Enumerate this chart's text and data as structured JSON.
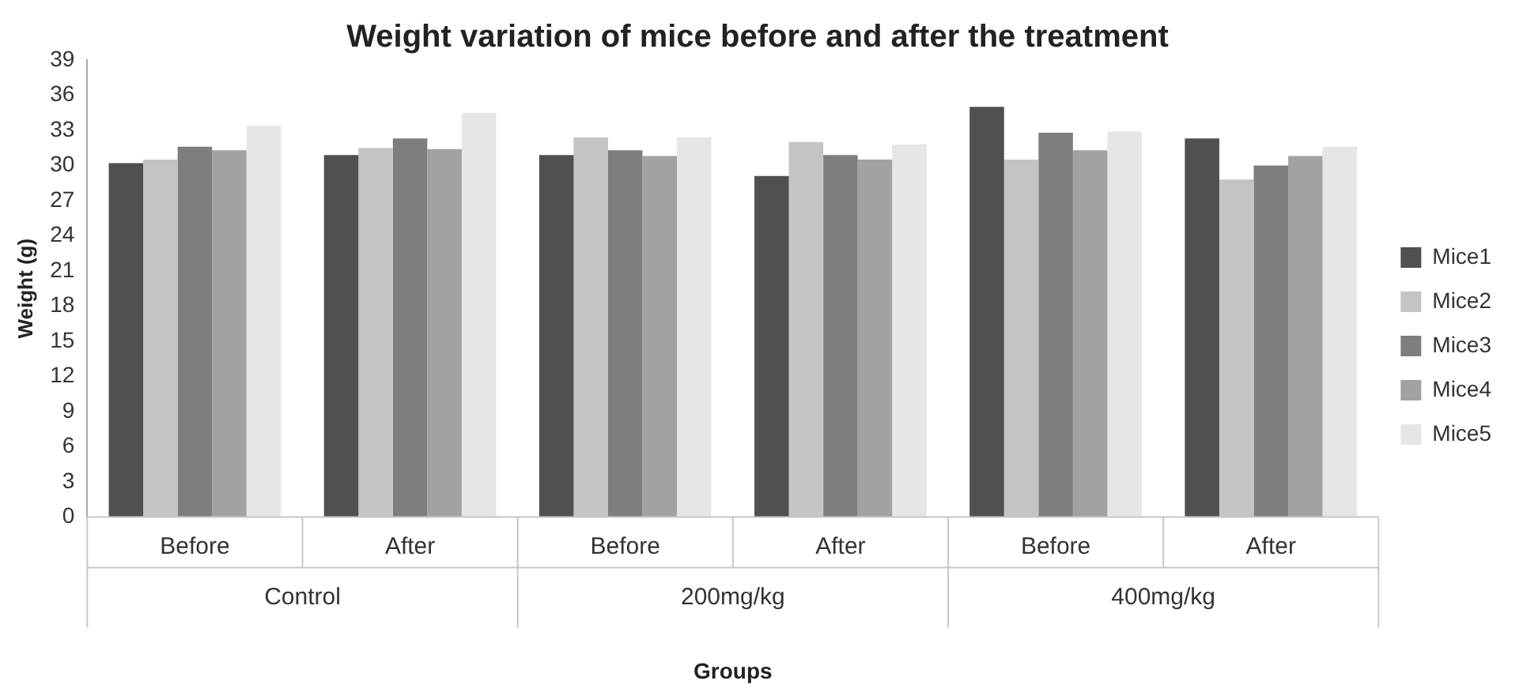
{
  "chart_data": {
    "type": "bar",
    "title": "Weight variation of mice before and after the treatment",
    "xlabel": "Groups",
    "ylabel": "Weight (g)",
    "categories": [
      "Before",
      "After",
      "Before",
      "After",
      "Before",
      "After"
    ],
    "annotations": [
      "Control",
      "200mg/kg",
      "400mg/kg"
    ],
    "series": [
      {
        "name": "Mice1",
        "color": "#505050",
        "values": [
          30.2,
          30.9,
          30.9,
          29.1,
          35.0,
          32.3
        ]
      },
      {
        "name": "Mice2",
        "color": "#c4c4c4",
        "values": [
          30.5,
          31.5,
          32.4,
          32.0,
          30.5,
          28.8
        ]
      },
      {
        "name": "Mice3",
        "color": "#7e7e7e",
        "values": [
          31.6,
          32.3,
          31.3,
          30.9,
          32.8,
          30.0
        ]
      },
      {
        "name": "Mice4",
        "color": "#a2a2a2",
        "values": [
          31.3,
          31.4,
          30.8,
          30.5,
          31.3,
          30.8
        ]
      },
      {
        "name": "Mice5",
        "color": "#e6e6e6",
        "values": [
          33.4,
          34.5,
          32.4,
          31.8,
          32.9,
          31.6
        ]
      }
    ],
    "ylim": [
      0,
      39
    ],
    "yticks": [
      0,
      3,
      6,
      9,
      12,
      15,
      18,
      21,
      24,
      27,
      30,
      33,
      36,
      39
    ],
    "grid": false,
    "legend": "right"
  }
}
